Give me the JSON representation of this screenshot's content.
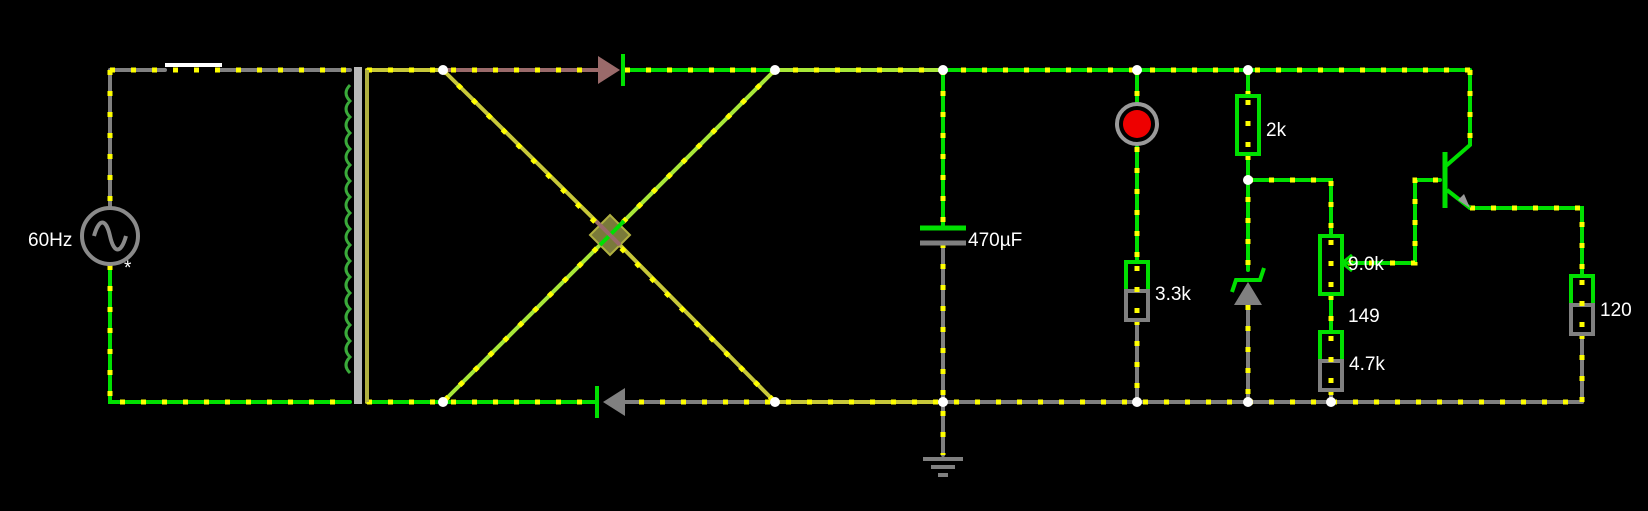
{
  "components": {
    "ac_source": {
      "frequency_label": "60Hz",
      "marker": "*",
      "icon": "ac-sine-wave-icon"
    },
    "capacitor": {
      "label": "470µF"
    },
    "led": {
      "color": "#ee0000",
      "label": ""
    },
    "resistors": [
      {
        "id": "r-2k",
        "label": "2k"
      },
      {
        "id": "r-3k3",
        "label": "3.3k"
      },
      {
        "id": "r-pot",
        "label": "9.0k"
      },
      {
        "id": "r-4k7",
        "label": "4.7k"
      },
      {
        "id": "r-120",
        "label": "120"
      }
    ],
    "transistor": {
      "label": "149"
    }
  },
  "colors": {
    "background": "#000000",
    "wire_high": "#00e000",
    "wire_ground": "#808080",
    "wire_mid": "#c8c83a",
    "current_dots": "#ffff00",
    "node": "#ffffff"
  }
}
